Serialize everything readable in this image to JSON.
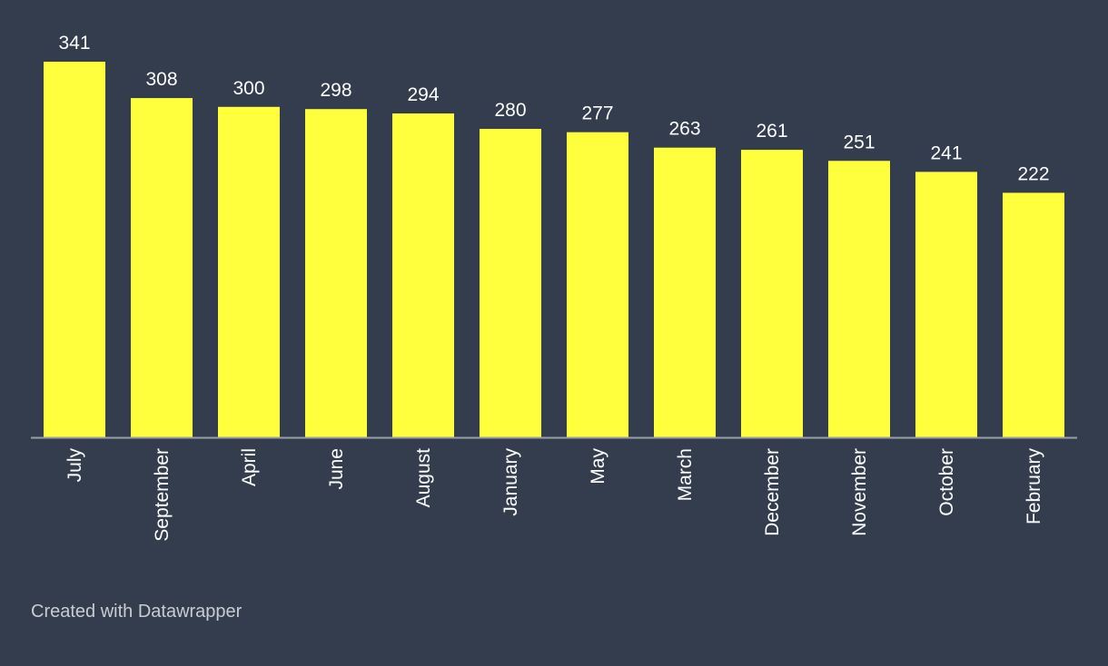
{
  "chart_data": {
    "type": "bar",
    "categories": [
      "July",
      "September",
      "April",
      "June",
      "August",
      "January",
      "May",
      "March",
      "December",
      "November",
      "October",
      "February"
    ],
    "values": [
      341,
      308,
      300,
      298,
      294,
      280,
      277,
      263,
      261,
      251,
      241,
      222
    ],
    "title": "",
    "xlabel": "",
    "ylabel": "",
    "ylim": [
      0,
      341
    ],
    "grid": false,
    "legend": "none",
    "bar_color": "#ffff3d",
    "background_color": "#333d4e",
    "baseline_color": "#9a9ea6"
  },
  "footer": {
    "credit": "Created with Datawrapper"
  }
}
